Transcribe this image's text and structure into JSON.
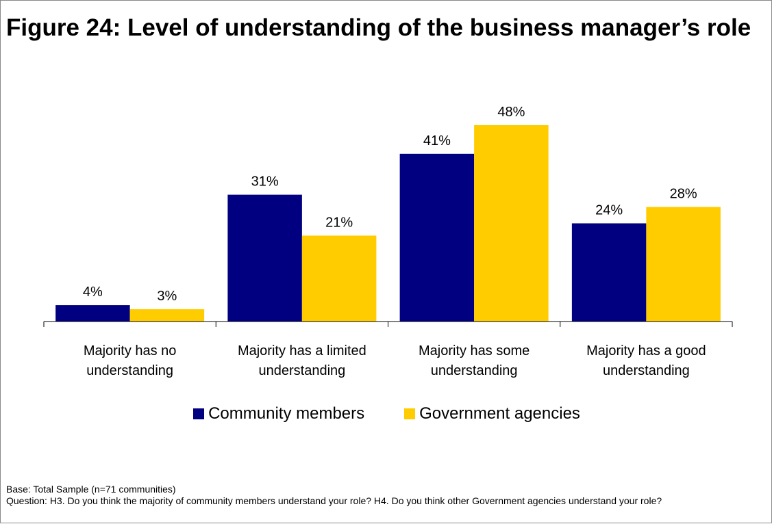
{
  "title": "Figure 24: Level of understanding of the business manager’s role",
  "footer": {
    "base": "Base: Total Sample (n=71 communities)",
    "question": "Question: H3. Do you think the majority of community members understand your role? H4. Do you think other Government agencies understand your role?"
  },
  "colors": {
    "community": "#000080",
    "government": "#FFCC00"
  },
  "chart_data": {
    "type": "bar",
    "title": "Figure 24: Level of understanding of the business manager’s role",
    "xlabel": "",
    "ylabel": "",
    "ylim": [
      0,
      50
    ],
    "grid": false,
    "legend_position": "bottom",
    "value_suffix": "%",
    "categories": [
      [
        "Majority has no",
        "understanding"
      ],
      [
        "Majority has a limited",
        "understanding"
      ],
      [
        "Majority has some",
        "understanding"
      ],
      [
        "Majority has a good",
        "understanding"
      ]
    ],
    "series": [
      {
        "name": "Community members",
        "color": "#000080",
        "values": [
          4,
          31,
          41,
          24
        ]
      },
      {
        "name": "Government agencies",
        "color": "#FFCC00",
        "values": [
          3,
          21,
          48,
          28
        ]
      }
    ]
  }
}
